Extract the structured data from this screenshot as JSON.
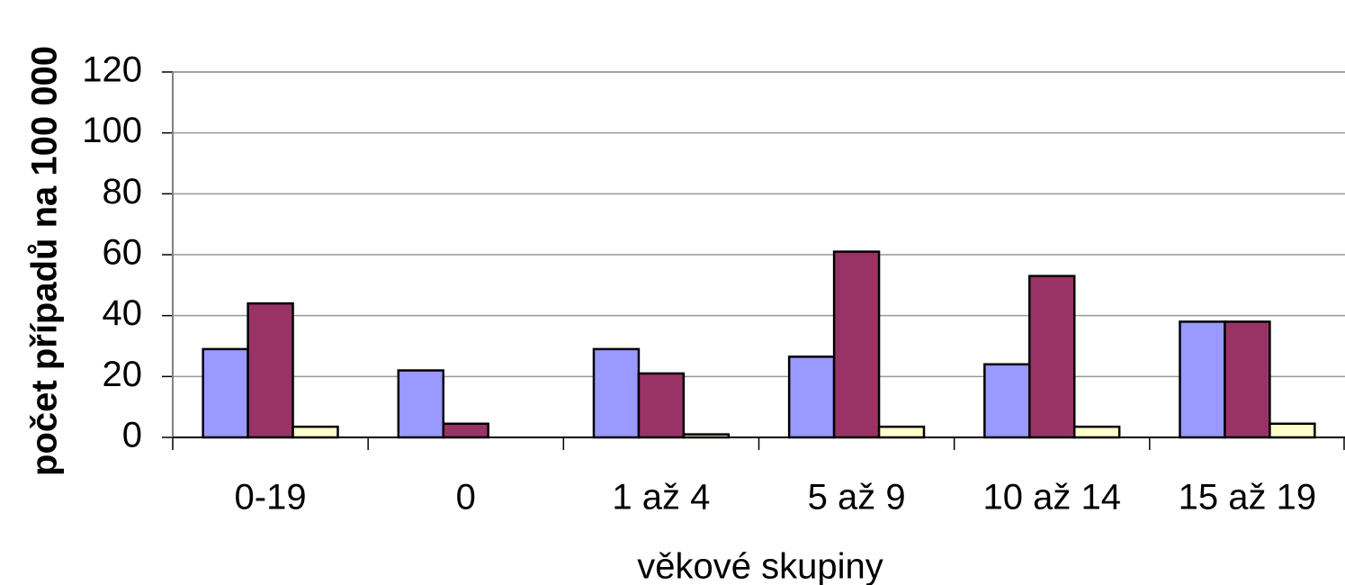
{
  "chart_data": {
    "type": "bar",
    "x_label": "věkové skupiny",
    "y_label": "počet případů na 100 000",
    "categories": [
      "0-19",
      "0",
      "1 až 4",
      "5 až 9",
      "10 až 14",
      "15 až 19"
    ],
    "series": [
      {
        "color": "#9999ff",
        "values": [
          29,
          22,
          29,
          26.5,
          24,
          38
        ]
      },
      {
        "color": "#993366",
        "values": [
          44,
          4.5,
          21,
          61,
          53,
          38
        ]
      },
      {
        "color": "#ffffcc",
        "values": [
          3.5,
          0,
          1,
          3.5,
          3.5,
          4.5
        ]
      }
    ],
    "ylim": [
      0,
      120
    ],
    "yticks": [
      0,
      20,
      40,
      60,
      80,
      100,
      120
    ],
    "grid": true
  }
}
